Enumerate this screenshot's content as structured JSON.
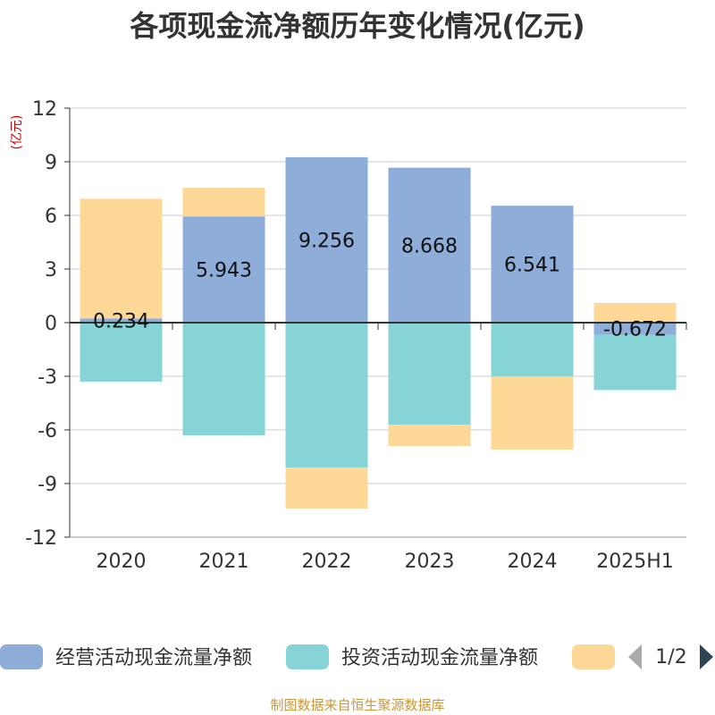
{
  "chart_data": {
    "type": "bar",
    "stacked": true,
    "title": "各项现金流净额历年变化情况(亿元)",
    "ylabel": "(亿元)",
    "ylim": [
      -12,
      12
    ],
    "yticks": [
      "12",
      "9",
      "6",
      "3",
      "0",
      "-3",
      "-6",
      "-9",
      "-12"
    ],
    "categories": [
      "2020",
      "2021",
      "2022",
      "2023",
      "2024",
      "2025H1"
    ],
    "grid": true,
    "series": [
      {
        "name": "经营活动现金流量净额",
        "color": "#8eaed9",
        "values": [
          0.234,
          5.943,
          9.256,
          8.668,
          6.541,
          -0.672
        ]
      },
      {
        "name": "投资活动现金流量净额",
        "color": "#86d4d6",
        "values": [
          -3.3,
          -6.3,
          -8.1,
          -5.7,
          -3.0,
          -3.1
        ]
      },
      {
        "name": "",
        "color": "#fdd896",
        "values": [
          6.7,
          1.6,
          -2.3,
          -1.2,
          -4.1,
          1.1
        ]
      }
    ],
    "data_labels": [
      "0.234",
      "5.943",
      "9.256",
      "8.668",
      "6.541",
      "-0.672"
    ],
    "legend_page": "1/2",
    "source": "制图数据来自恒生聚源数据库"
  }
}
